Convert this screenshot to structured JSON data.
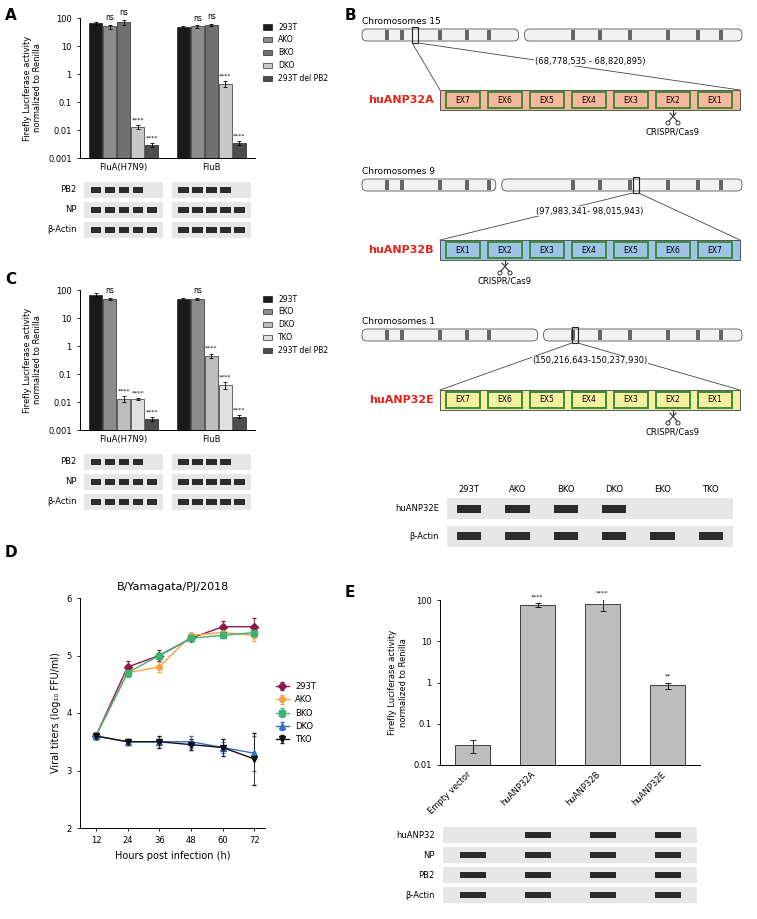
{
  "chart_data": [
    {
      "panel": "A",
      "type": "bar",
      "ylabel": "Firefly Luciferase activity\nnormalized to Renilla",
      "categories": [
        "FluA(H7N9)",
        "FluB"
      ],
      "log": "y",
      "ylim": [
        0.001,
        100
      ],
      "yticks": [
        0.001,
        0.01,
        0.1,
        1,
        10,
        100
      ],
      "legend": "upper right",
      "series": [
        {
          "name": "293T",
          "color": "#1a1a1a",
          "values": [
            65,
            48
          ],
          "errors": [
            8,
            3
          ],
          "significance": [
            null,
            null
          ]
        },
        {
          "name": "AKO",
          "color": "#8c8c8c",
          "values": [
            50,
            50
          ],
          "errors": [
            8,
            5
          ],
          "significance": [
            "ns",
            "ns"
          ]
        },
        {
          "name": "BKO",
          "color": "#707070",
          "values": [
            70,
            58
          ],
          "errors": [
            15,
            5
          ],
          "significance": [
            "ns",
            "ns"
          ]
        },
        {
          "name": "DKO",
          "color": "#c8c8c8",
          "values": [
            0.013,
            0.45
          ],
          "errors": [
            0.002,
            0.1
          ],
          "significance": [
            "****",
            "****"
          ]
        },
        {
          "name": "293T del PB2",
          "color": "#4d4d4d",
          "values": [
            0.003,
            0.0035
          ],
          "errors": [
            0.0005,
            0.0005
          ],
          "significance": [
            "****",
            "****"
          ]
        }
      ],
      "blot": {
        "rows": [
          "PB2",
          "NP",
          "β-Actin"
        ]
      }
    },
    {
      "panel": "C",
      "type": "bar",
      "ylabel": "Firefly Luciferase activity\nnormalized to Renilla",
      "categories": [
        "FluA(H7N9)",
        "FluB"
      ],
      "log": "y",
      "ylim": [
        0.001,
        100
      ],
      "yticks": [
        0.001,
        0.01,
        0.1,
        1,
        10,
        100
      ],
      "legend": "upper right",
      "series": [
        {
          "name": "293T",
          "color": "#1a1a1a",
          "values": [
            65,
            48
          ],
          "errors": [
            10,
            3
          ],
          "significance": [
            null,
            null
          ]
        },
        {
          "name": "EKO",
          "color": "#8c8c8c",
          "values": [
            48,
            48
          ],
          "errors": [
            5,
            5
          ],
          "significance": [
            "ns",
            "ns"
          ]
        },
        {
          "name": "DKO",
          "color": "#bdbdbd",
          "values": [
            0.013,
            0.45
          ],
          "errors": [
            0.003,
            0.08
          ],
          "significance": [
            "****",
            "****"
          ]
        },
        {
          "name": "TKO",
          "color": "#e0e0e0",
          "values": [
            0.013,
            0.04
          ],
          "errors": [
            0.001,
            0.012
          ],
          "significance": [
            "****",
            "****"
          ]
        },
        {
          "name": "293T del PB2",
          "color": "#4d4d4d",
          "values": [
            0.0025,
            0.003
          ],
          "errors": [
            0.0004,
            0.0003
          ],
          "significance": [
            "****",
            "****"
          ]
        }
      ],
      "blot": {
        "rows": [
          "PB2",
          "NP",
          "β-Actin"
        ]
      }
    },
    {
      "panel": "D",
      "type": "line",
      "title": "B/Yamagata/PJ/2018",
      "xlabel": "Hours post infection (h)",
      "ylabel": "Viral titers (log₁₀ FFU/ml)",
      "x": [
        12,
        24,
        36,
        48,
        60,
        72
      ],
      "xlim": [
        6,
        76
      ],
      "xticks": [
        12,
        24,
        36,
        48,
        60,
        72
      ],
      "ylim": [
        2,
        6
      ],
      "yticks": [
        2,
        3,
        4,
        5,
        6
      ],
      "legend": "right",
      "series": [
        {
          "name": "293T",
          "color": "#8b1a4a",
          "marker": "diamond",
          "values": [
            3.6,
            4.8,
            5.0,
            5.3,
            5.5,
            5.5
          ],
          "errors": [
            0.05,
            0.1,
            0.1,
            0.05,
            0.1,
            0.15
          ]
        },
        {
          "name": "AKO",
          "color": "#f5a142",
          "marker": "circle",
          "values": [
            3.6,
            4.7,
            4.8,
            5.35,
            5.4,
            5.35
          ],
          "errors": [
            0.05,
            0.05,
            0.08,
            0.05,
            0.05,
            0.1
          ]
        },
        {
          "name": "BKO",
          "color": "#3cb371",
          "marker": "square",
          "values": [
            3.6,
            4.7,
            5.0,
            5.3,
            5.35,
            5.4
          ],
          "errors": [
            0.05,
            0.08,
            0.05,
            0.05,
            0.05,
            0.1
          ]
        },
        {
          "name": "DKO",
          "color": "#3b6fc4",
          "marker": "triangle_up",
          "values": [
            3.6,
            3.5,
            3.5,
            3.5,
            3.4,
            3.3
          ],
          "errors": [
            0.05,
            0.05,
            0.05,
            0.1,
            0.1,
            0.3
          ]
        },
        {
          "name": "TKO",
          "color": "#111111",
          "marker": "triangle_down",
          "values": [
            3.6,
            3.5,
            3.5,
            3.45,
            3.4,
            3.2
          ],
          "errors": [
            0.05,
            0.05,
            0.1,
            0.1,
            0.15,
            0.45
          ]
        }
      ]
    },
    {
      "panel": "E",
      "type": "bar",
      "ylabel": "Firefly Luciferase activity\nnormalized to Renilla",
      "categories": [
        "Empty vector",
        "huANP32A",
        "huANP32B",
        "huANP32E"
      ],
      "values": [
        0.03,
        75,
        80,
        0.85
      ],
      "errors": [
        0.01,
        8,
        25,
        0.15
      ],
      "significance": [
        null,
        "****",
        "****",
        "**"
      ],
      "color": "#bdbdbd",
      "log": "y",
      "ylim": [
        0.01,
        100
      ],
      "yticks": [
        0.01,
        0.1,
        1,
        10,
        100
      ],
      "blot": {
        "rows": [
          "huANP32",
          "NP",
          "PB2",
          "β-Actin"
        ]
      }
    }
  ],
  "diagram": {
    "panel": "B",
    "genes": [
      {
        "chromosome": "Chromosomes 15",
        "coordinates": "(68,778,535 - 68,820,895)",
        "name": "huANP32A",
        "color": "#f6b79c",
        "exons": [
          "EX7",
          "EX6",
          "EX5",
          "EX4",
          "EX3",
          "EX2",
          "EX1"
        ],
        "cut_exon": "EX2",
        "tool": "CRISPR/Cas9"
      },
      {
        "chromosome": "Chromosomes 9",
        "coordinates": "(97,983,341- 98,015,943)",
        "name": "huANP32B",
        "color": "#9dc3e6",
        "exons": [
          "EX1",
          "EX2",
          "EX3",
          "EX4",
          "EX5",
          "EX6",
          "EX7"
        ],
        "cut_exon": "EX2",
        "tool": "CRISPR/Cas9"
      },
      {
        "chromosome": "Chromosomes 1",
        "coordinates": "(150,216,643-150,237,930)",
        "name": "huANP32E",
        "color": "#f5f0a0",
        "exons": [
          "EX7",
          "EX6",
          "EX5",
          "EX4",
          "EX3",
          "EX2",
          "EX1"
        ],
        "cut_exon": "EX2",
        "tool": "CRISPR/Cas9"
      }
    ],
    "blot": {
      "lanes": [
        "293T",
        "AKO",
        "BKO",
        "DKO",
        "EKO",
        "TKO"
      ],
      "rows": [
        "huANP32E",
        "β-Actin"
      ]
    }
  }
}
